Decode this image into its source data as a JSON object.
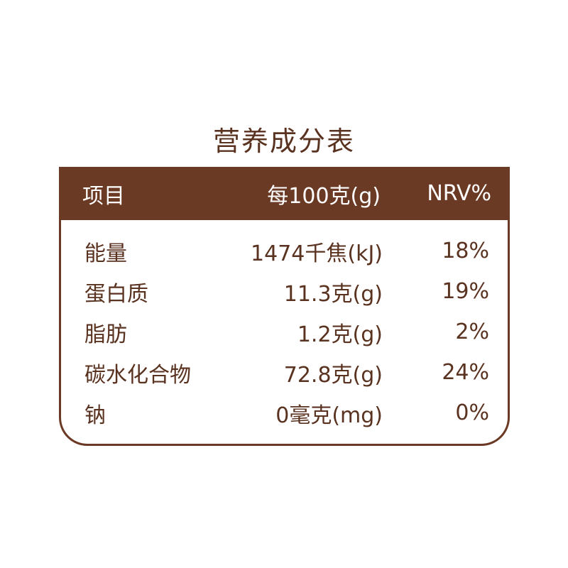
{
  "title": "营养成分表",
  "header": [
    "项目",
    "每100克(g)",
    "NRV%"
  ],
  "rows": [
    [
      "能量",
      "1474千焦(kJ)",
      "18%"
    ],
    [
      "蛋白质",
      "11.3克(g)",
      "19%"
    ],
    [
      "脂肪",
      "1.2克(g)",
      "2%"
    ],
    [
      "碳水化合物",
      "72.8克(g)",
      "24%"
    ],
    [
      "钠",
      "0毫克(mg)",
      "0%"
    ]
  ],
  "colors": {
    "header_bg": "#6b3a24",
    "text": "#5a3220"
  }
}
